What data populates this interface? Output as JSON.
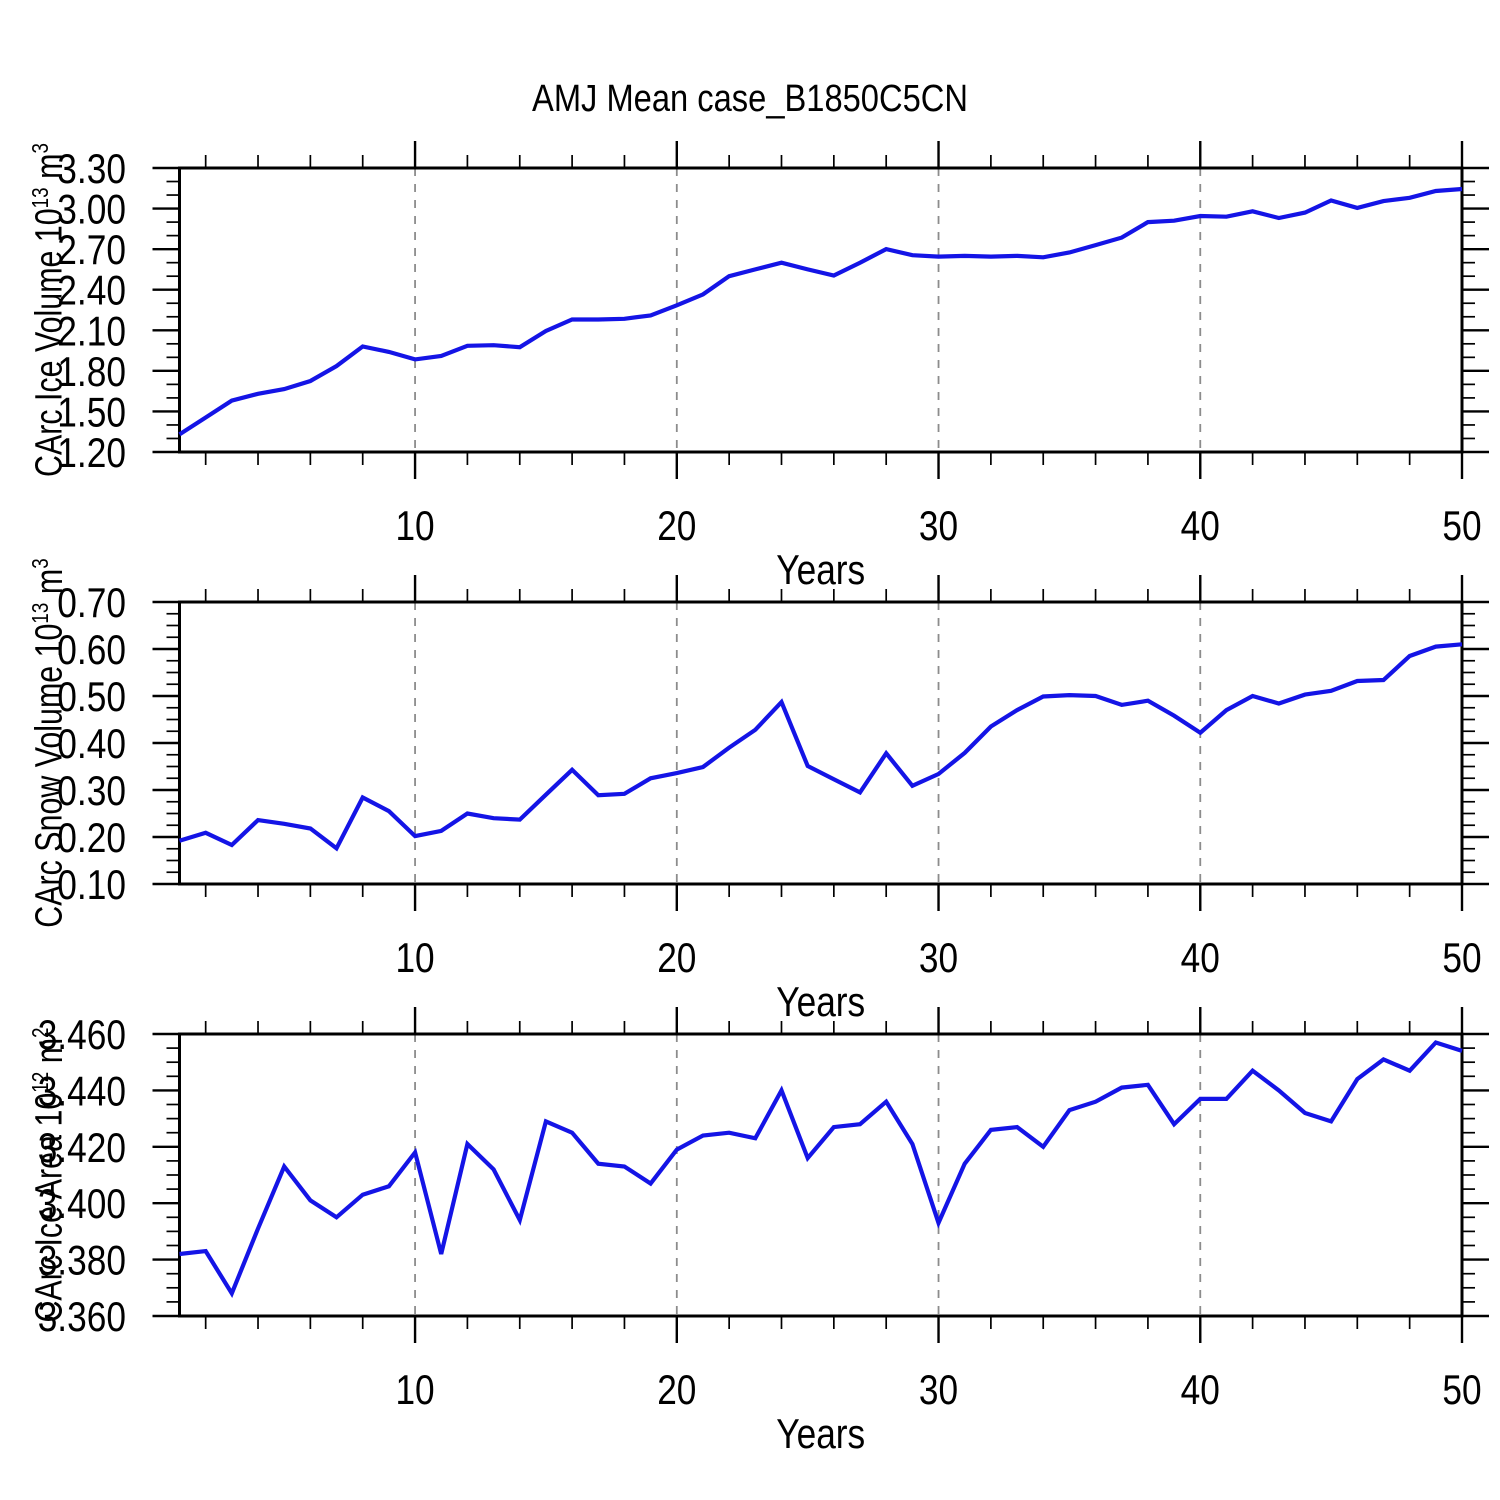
{
  "title": "AMJ Mean case_B1850C5CN",
  "colors": {
    "line": "#1414e6",
    "grid": "#8c8c8c",
    "axis": "#000000",
    "background": "#ffffff"
  },
  "chart_data": {
    "type": "line",
    "suptitle": "AMJ Mean case_B1850C5CN",
    "legend": "none",
    "x": [
      1,
      2,
      3,
      4,
      5,
      6,
      7,
      8,
      9,
      10,
      11,
      12,
      13,
      14,
      15,
      16,
      17,
      18,
      19,
      20,
      21,
      22,
      23,
      24,
      25,
      26,
      27,
      28,
      29,
      30,
      31,
      32,
      33,
      34,
      35,
      36,
      37,
      38,
      39,
      40,
      41,
      42,
      43,
      44,
      45,
      46,
      47,
      48,
      49,
      50
    ],
    "x_axis": {
      "label": "Years",
      "range": [
        1,
        50
      ],
      "major_ticks": [
        10,
        20,
        30,
        40,
        50
      ],
      "major_tick_labels": [
        "10",
        "20",
        "30",
        "40",
        "50"
      ],
      "minor_tick_step": 2,
      "dashed_gridlines": [
        10,
        20,
        30,
        40
      ]
    },
    "panels": [
      {
        "name": "ice_volume",
        "ylabel": {
          "prefix": "CArc Ice Volume 10",
          "exponent": "13",
          "unit": "m",
          "unit_exponent": "3"
        },
        "y_axis": {
          "range": [
            1.2,
            3.3
          ],
          "major_ticks": [
            3.3,
            3.0,
            2.7,
            2.4,
            2.1,
            1.8,
            1.5,
            1.2
          ],
          "tick_labels": [
            "3.30",
            "3.00",
            "2.70",
            "2.40",
            "2.10",
            "1.80",
            "1.50",
            "1.20"
          ],
          "minor_tick_step": 0.1
        },
        "values": [
          1.33,
          1.455,
          1.58,
          1.63,
          1.665,
          1.725,
          1.835,
          1.98,
          1.94,
          1.885,
          1.91,
          1.985,
          1.99,
          1.975,
          2.095,
          2.18,
          2.18,
          2.185,
          2.21,
          2.285,
          2.365,
          2.5,
          2.55,
          2.6,
          2.55,
          2.505,
          2.6,
          2.7,
          2.655,
          2.645,
          2.65,
          2.645,
          2.65,
          2.64,
          2.675,
          2.73,
          2.785,
          2.9,
          2.91,
          2.945,
          2.94,
          2.98,
          2.93,
          2.97,
          3.06,
          3.005,
          3.055,
          3.08,
          3.13,
          3.145
        ]
      },
      {
        "name": "snow_volume",
        "ylabel": {
          "prefix": "CArc Snow Volume 10",
          "exponent": "13",
          "unit": "m",
          "unit_exponent": "3"
        },
        "y_axis": {
          "range": [
            0.1,
            0.7
          ],
          "major_ticks": [
            0.7,
            0.6,
            0.5,
            0.4,
            0.3,
            0.2,
            0.1
          ],
          "tick_labels": [
            "0.70",
            "0.60",
            "0.50",
            "0.40",
            "0.30",
            "0.20",
            "0.10"
          ],
          "minor_tick_step": 0.025
        },
        "values": [
          0.192,
          0.209,
          0.183,
          0.236,
          0.228,
          0.218,
          0.176,
          0.284,
          0.255,
          0.202,
          0.213,
          0.25,
          0.24,
          0.237,
          0.29,
          0.343,
          0.289,
          0.292,
          0.325,
          0.336,
          0.349,
          0.39,
          0.428,
          0.487,
          0.351,
          0.323,
          0.295,
          0.378,
          0.309,
          0.334,
          0.379,
          0.435,
          0.47,
          0.499,
          0.502,
          0.5,
          0.481,
          0.49,
          0.458,
          0.422,
          0.47,
          0.5,
          0.484,
          0.503,
          0.511,
          0.532,
          0.534,
          0.585,
          0.605,
          0.61
        ]
      },
      {
        "name": "ice_area",
        "ylabel": {
          "prefix": "CArc Ice Area 10",
          "exponent": "12",
          "unit": "m",
          "unit_exponent": "2"
        },
        "y_axis": {
          "range": [
            3.36,
            3.46
          ],
          "major_ticks": [
            3.46,
            3.44,
            3.42,
            3.4,
            3.38,
            3.36
          ],
          "tick_labels": [
            "3.460",
            "3.440",
            "3.420",
            "3.400",
            "3.380",
            "3.360"
          ],
          "minor_tick_step": 0.005
        },
        "values": [
          3.382,
          3.383,
          3.368,
          3.391,
          3.413,
          3.401,
          3.395,
          3.403,
          3.406,
          3.418,
          3.382,
          3.421,
          3.412,
          3.394,
          3.429,
          3.425,
          3.414,
          3.413,
          3.407,
          3.419,
          3.424,
          3.425,
          3.423,
          3.44,
          3.416,
          3.427,
          3.428,
          3.436,
          3.421,
          3.393,
          3.414,
          3.426,
          3.427,
          3.42,
          3.433,
          3.436,
          3.441,
          3.442,
          3.428,
          3.437,
          3.437,
          3.447,
          3.44,
          3.432,
          3.429,
          3.444,
          3.451,
          3.447,
          3.457,
          3.454
        ]
      }
    ]
  }
}
